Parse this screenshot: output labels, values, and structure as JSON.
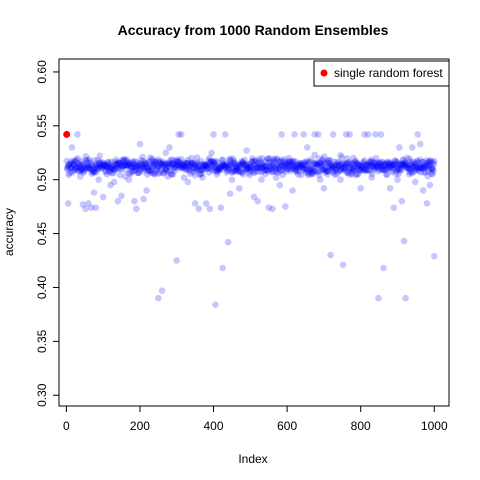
{
  "chart_data": {
    "type": "scatter",
    "title": "Accuracy from 1000 Random Ensembles",
    "xlabel": "Index",
    "ylabel": "accuracy",
    "xlim": [
      -20,
      1040
    ],
    "ylim": [
      0.29,
      0.612
    ],
    "x_ticks": [
      0,
      200,
      400,
      600,
      800,
      1000
    ],
    "y_ticks": [
      0.3,
      0.35,
      0.4,
      0.45,
      0.5,
      0.55,
      0.6
    ],
    "y_tick_labels": [
      "0.30",
      "0.35",
      "0.40",
      "0.45",
      "0.50",
      "0.55",
      "0.60"
    ],
    "legend": {
      "placement": "top-right",
      "label": "single random forest",
      "color": "#ff0000"
    },
    "highlight_point": {
      "x": 1,
      "y": 0.542,
      "color": "#ff0000"
    },
    "ensemble_color": "#0000ff",
    "ensemble_opacity": 0.22,
    "series": [
      {
        "points": [
          [
            5,
            0.478
          ],
          [
            15,
            0.53
          ],
          [
            30,
            0.542
          ],
          [
            38,
            0.503
          ],
          [
            45,
            0.477
          ],
          [
            52,
            0.473
          ],
          [
            60,
            0.478
          ],
          [
            68,
            0.474
          ],
          [
            75,
            0.488
          ],
          [
            80,
            0.474
          ],
          [
            88,
            0.5
          ],
          [
            100,
            0.484
          ],
          [
            110,
            0.505
          ],
          [
            120,
            0.495
          ],
          [
            130,
            0.498
          ],
          [
            140,
            0.48
          ],
          [
            150,
            0.485
          ],
          [
            160,
            0.503
          ],
          [
            170,
            0.5
          ],
          [
            178,
            0.516
          ],
          [
            185,
            0.48
          ],
          [
            190,
            0.473
          ],
          [
            200,
            0.533
          ],
          [
            210,
            0.482
          ],
          [
            218,
            0.49
          ],
          [
            230,
            0.508
          ],
          [
            240,
            0.505
          ],
          [
            250,
            0.39
          ],
          [
            260,
            0.397
          ],
          [
            270,
            0.525
          ],
          [
            280,
            0.53
          ],
          [
            290,
            0.505
          ],
          [
            300,
            0.425
          ],
          [
            305,
            0.542
          ],
          [
            312,
            0.542
          ],
          [
            320,
            0.502
          ],
          [
            330,
            0.498
          ],
          [
            340,
            0.52
          ],
          [
            350,
            0.478
          ],
          [
            360,
            0.473
          ],
          [
            370,
            0.502
          ],
          [
            380,
            0.478
          ],
          [
            390,
            0.473
          ],
          [
            395,
            0.525
          ],
          [
            400,
            0.542
          ],
          [
            405,
            0.384
          ],
          [
            412,
            0.51
          ],
          [
            420,
            0.474
          ],
          [
            425,
            0.418
          ],
          [
            432,
            0.542
          ],
          [
            440,
            0.442
          ],
          [
            445,
            0.487
          ],
          [
            450,
            0.5
          ],
          [
            460,
            0.508
          ],
          [
            470,
            0.492
          ],
          [
            480,
            0.505
          ],
          [
            490,
            0.527
          ],
          [
            500,
            0.51
          ],
          [
            510,
            0.484
          ],
          [
            520,
            0.48
          ],
          [
            530,
            0.5
          ],
          [
            540,
            0.505
          ],
          [
            550,
            0.474
          ],
          [
            560,
            0.473
          ],
          [
            570,
            0.502
          ],
          [
            580,
            0.495
          ],
          [
            585,
            0.542
          ],
          [
            595,
            0.475
          ],
          [
            605,
            0.52
          ],
          [
            615,
            0.49
          ],
          [
            620,
            0.542
          ],
          [
            630,
            0.505
          ],
          [
            645,
            0.542
          ],
          [
            655,
            0.53
          ],
          [
            665,
            0.505
          ],
          [
            675,
            0.542
          ],
          [
            685,
            0.542
          ],
          [
            690,
            0.5
          ],
          [
            700,
            0.492
          ],
          [
            710,
            0.505
          ],
          [
            718,
            0.43
          ],
          [
            725,
            0.542
          ],
          [
            735,
            0.505
          ],
          [
            745,
            0.5
          ],
          [
            752,
            0.421
          ],
          [
            760,
            0.542
          ],
          [
            770,
            0.542
          ],
          [
            780,
            0.52
          ],
          [
            790,
            0.505
          ],
          [
            800,
            0.492
          ],
          [
            810,
            0.542
          ],
          [
            820,
            0.542
          ],
          [
            830,
            0.502
          ],
          [
            840,
            0.542
          ],
          [
            848,
            0.39
          ],
          [
            855,
            0.542
          ],
          [
            862,
            0.418
          ],
          [
            870,
            0.505
          ],
          [
            880,
            0.492
          ],
          [
            890,
            0.474
          ],
          [
            900,
            0.5
          ],
          [
            905,
            0.53
          ],
          [
            912,
            0.48
          ],
          [
            918,
            0.443
          ],
          [
            922,
            0.39
          ],
          [
            932,
            0.505
          ],
          [
            940,
            0.53
          ],
          [
            948,
            0.498
          ],
          [
            955,
            0.542
          ],
          [
            962,
            0.533
          ],
          [
            970,
            0.49
          ],
          [
            980,
            0.478
          ],
          [
            988,
            0.495
          ],
          [
            995,
            0.505
          ],
          [
            1000,
            0.429
          ]
        ]
      }
    ]
  }
}
